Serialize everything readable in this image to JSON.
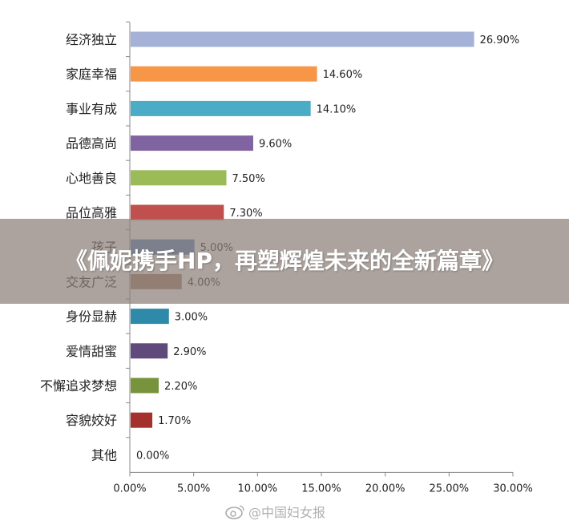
{
  "title": "《佩妮携手HP，再塑辉煌未来的全新篇章》",
  "watermark": "@中国妇女报",
  "chart_data": {
    "type": "bar",
    "orientation": "horizontal",
    "categories": [
      "经济独立",
      "家庭幸福",
      "事业有成",
      "品德高尚",
      "心地善良",
      "品位高雅",
      "孩子",
      "交友广泛",
      "身份显赫",
      "爱情甜蜜",
      "不懈追求梦想",
      "容貌姣好",
      "其他"
    ],
    "values": [
      26.9,
      14.6,
      14.1,
      9.6,
      7.5,
      7.3,
      5.0,
      4.0,
      3.0,
      2.9,
      2.2,
      1.7,
      0.0
    ],
    "value_labels": [
      "26.90%",
      "14.60%",
      "14.10%",
      "9.60%",
      "7.50%",
      "7.30%",
      "5.00%",
      "4.00%",
      "3.00%",
      "2.90%",
      "2.20%",
      "1.70%",
      "0.00%"
    ],
    "colors": [
      "#a5b1d6",
      "#f79646",
      "#4bacc6",
      "#8064a2",
      "#9bbb59",
      "#c0504d",
      "#4f81bd",
      "#a67c64",
      "#2e8aa8",
      "#604a7b",
      "#77933c",
      "#a5312c",
      "#4f81bd"
    ],
    "xlim": [
      0,
      30
    ],
    "xticks": [
      "0.00%",
      "5.00%",
      "10.00%",
      "15.00%",
      "20.00%",
      "25.00%",
      "30.00%"
    ],
    "grid": false
  }
}
